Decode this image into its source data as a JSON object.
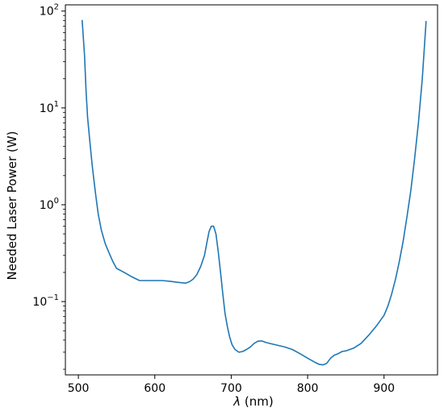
{
  "chart_data": {
    "type": "line",
    "title": "",
    "xlabel_symbol": "λ",
    "xlabel_unit": " (nm)",
    "ylabel": "Needed Laser Power (W)",
    "xlim": [
      483,
      970
    ],
    "ylim": [
      0.0175,
      116
    ],
    "yscale": "log",
    "grid": false,
    "legend": "none",
    "x_ticks": [
      {
        "value": 500,
        "label": "500"
      },
      {
        "value": 600,
        "label": "600"
      },
      {
        "value": 700,
        "label": "700"
      },
      {
        "value": 800,
        "label": "800"
      },
      {
        "value": 900,
        "label": "900"
      }
    ],
    "y_ticks": [
      {
        "value": 100,
        "base": "10",
        "exp": "2"
      },
      {
        "value": 10,
        "base": "10",
        "exp": "1"
      },
      {
        "value": 1,
        "base": "10",
        "exp": "0"
      },
      {
        "value": 0.1,
        "base": "10",
        "exp": "−1"
      }
    ],
    "series": [
      {
        "color": "#1f77b4",
        "x": [
          505,
          508,
          510,
          512,
          515,
          518,
          520,
          523,
          526,
          530,
          535,
          540,
          545,
          550,
          555,
          560,
          570,
          580,
          590,
          600,
          610,
          620,
          630,
          640,
          645,
          650,
          655,
          660,
          665,
          668,
          671,
          674,
          677,
          680,
          683,
          686,
          689,
          692,
          695,
          698,
          701,
          705,
          710,
          715,
          720,
          725,
          730,
          735,
          740,
          745,
          750,
          760,
          770,
          780,
          790,
          800,
          810,
          815,
          820,
          825,
          830,
          835,
          840,
          845,
          850,
          860,
          870,
          880,
          890,
          900,
          905,
          910,
          915,
          920,
          925,
          930,
          935,
          940,
          945,
          950,
          955
        ],
        "y": [
          80,
          35,
          15,
          8,
          4.5,
          2.6,
          1.9,
          1.2,
          0.8,
          0.55,
          0.4,
          0.32,
          0.26,
          0.22,
          0.21,
          0.2,
          0.18,
          0.165,
          0.165,
          0.165,
          0.165,
          0.162,
          0.158,
          0.155,
          0.16,
          0.17,
          0.19,
          0.23,
          0.3,
          0.4,
          0.53,
          0.6,
          0.6,
          0.5,
          0.33,
          0.2,
          0.12,
          0.075,
          0.055,
          0.043,
          0.036,
          0.032,
          0.03,
          0.0305,
          0.032,
          0.034,
          0.037,
          0.039,
          0.0392,
          0.038,
          0.037,
          0.0355,
          0.034,
          0.032,
          0.029,
          0.026,
          0.0235,
          0.0225,
          0.0222,
          0.023,
          0.026,
          0.028,
          0.029,
          0.0305,
          0.031,
          0.033,
          0.037,
          0.045,
          0.056,
          0.072,
          0.09,
          0.12,
          0.17,
          0.26,
          0.42,
          0.75,
          1.4,
          3.0,
          7.0,
          20,
          78
        ]
      }
    ]
  }
}
